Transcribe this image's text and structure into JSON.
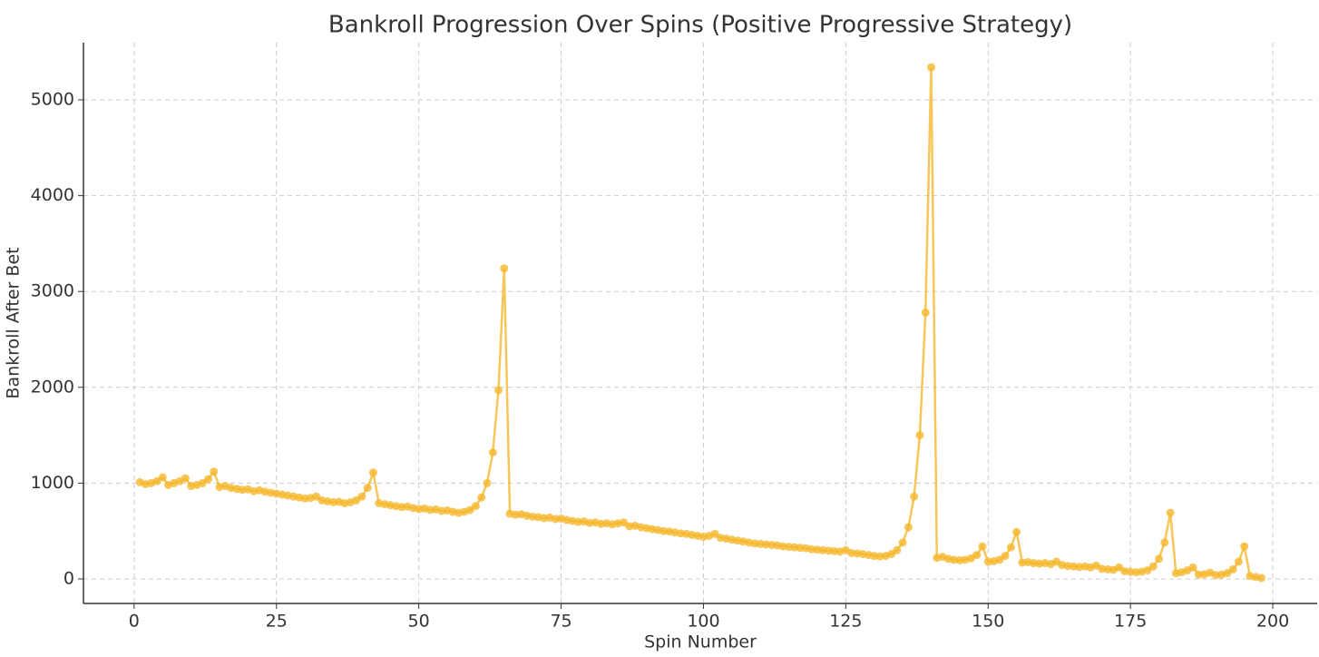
{
  "chart_data": {
    "type": "line",
    "title": "Bankroll Progression Over Spins (Positive Progressive Strategy)",
    "x_label": "Spin Number",
    "y_label": "Bankroll After Bet",
    "x": [
      1,
      2,
      3,
      4,
      5,
      6,
      7,
      8,
      9,
      10,
      11,
      12,
      13,
      14,
      15,
      16,
      17,
      18,
      19,
      20,
      21,
      22,
      23,
      24,
      25,
      26,
      27,
      28,
      29,
      30,
      31,
      32,
      33,
      34,
      35,
      36,
      37,
      38,
      39,
      40,
      41,
      42,
      43,
      44,
      45,
      46,
      47,
      48,
      49,
      50,
      51,
      52,
      53,
      54,
      55,
      56,
      57,
      58,
      59,
      60,
      61,
      62,
      63,
      64,
      65,
      66,
      67,
      68,
      69,
      70,
      71,
      72,
      73,
      74,
      75,
      76,
      77,
      78,
      79,
      80,
      81,
      82,
      83,
      84,
      85,
      86,
      87,
      88,
      89,
      90,
      91,
      92,
      93,
      94,
      95,
      96,
      97,
      98,
      99,
      100,
      101,
      102,
      103,
      104,
      105,
      106,
      107,
      108,
      109,
      110,
      111,
      112,
      113,
      114,
      115,
      116,
      117,
      118,
      119,
      120,
      121,
      122,
      123,
      124,
      125,
      126,
      127,
      128,
      129,
      130,
      131,
      132,
      133,
      134,
      135,
      136,
      137,
      138,
      139,
      140,
      141,
      142,
      143,
      144,
      145,
      146,
      147,
      148,
      149,
      150,
      151,
      152,
      153,
      154,
      155,
      156,
      157,
      158,
      159,
      160,
      161,
      162,
      163,
      164,
      165,
      166,
      167,
      168,
      169,
      170,
      171,
      172,
      173,
      174,
      175,
      176,
      177,
      178,
      179,
      180,
      181,
      182,
      183,
      184,
      185,
      186,
      187,
      188,
      189,
      190,
      191,
      192,
      193,
      194,
      195,
      196,
      197,
      198
    ],
    "series": [
      {
        "name": "Bankroll",
        "color": "#f5b82e",
        "values": [
          1010,
          990,
          1000,
          1020,
          1060,
          980,
          1000,
          1020,
          1050,
          970,
          980,
          1000,
          1040,
          1120,
          960,
          970,
          950,
          940,
          930,
          935,
          915,
          925,
          910,
          900,
          890,
          880,
          870,
          860,
          850,
          840,
          845,
          860,
          820,
          810,
          800,
          805,
          790,
          800,
          820,
          860,
          950,
          1110,
          790,
          780,
          770,
          760,
          750,
          755,
          740,
          730,
          735,
          720,
          725,
          710,
          715,
          700,
          690,
          700,
          720,
          760,
          850,
          1000,
          1320,
          1970,
          3240,
          680,
          670,
          675,
          660,
          650,
          645,
          635,
          640,
          625,
          630,
          615,
          605,
          595,
          600,
          585,
          590,
          575,
          580,
          570,
          580,
          590,
          550,
          555,
          540,
          530,
          520,
          510,
          500,
          495,
          485,
          475,
          470,
          460,
          450,
          440,
          450,
          470,
          430,
          420,
          410,
          400,
          390,
          380,
          370,
          365,
          360,
          355,
          350,
          340,
          335,
          330,
          325,
          320,
          310,
          305,
          300,
          295,
          290,
          285,
          300,
          270,
          265,
          260,
          250,
          240,
          235,
          240,
          260,
          300,
          380,
          540,
          860,
          1500,
          2780,
          5340,
          220,
          230,
          210,
          200,
          195,
          200,
          215,
          250,
          340,
          180,
          185,
          200,
          240,
          330,
          490,
          170,
          175,
          165,
          160,
          165,
          155,
          180,
          145,
          135,
          130,
          125,
          130,
          120,
          140,
          105,
          100,
          95,
          120,
          80,
          75,
          70,
          75,
          90,
          130,
          210,
          380,
          690,
          60,
          70,
          90,
          120,
          45,
          50,
          65,
          40,
          45,
          60,
          100,
          180,
          340,
          30,
          20,
          10
        ]
      }
    ],
    "xlim": [
      -8.9,
      207.8
    ],
    "ylim": [
      -256,
      5597
    ],
    "xticks": [
      0,
      25,
      50,
      75,
      100,
      125,
      150,
      175,
      200
    ],
    "yticks": [
      0,
      1000,
      2000,
      3000,
      4000,
      5000
    ],
    "grid": true
  }
}
